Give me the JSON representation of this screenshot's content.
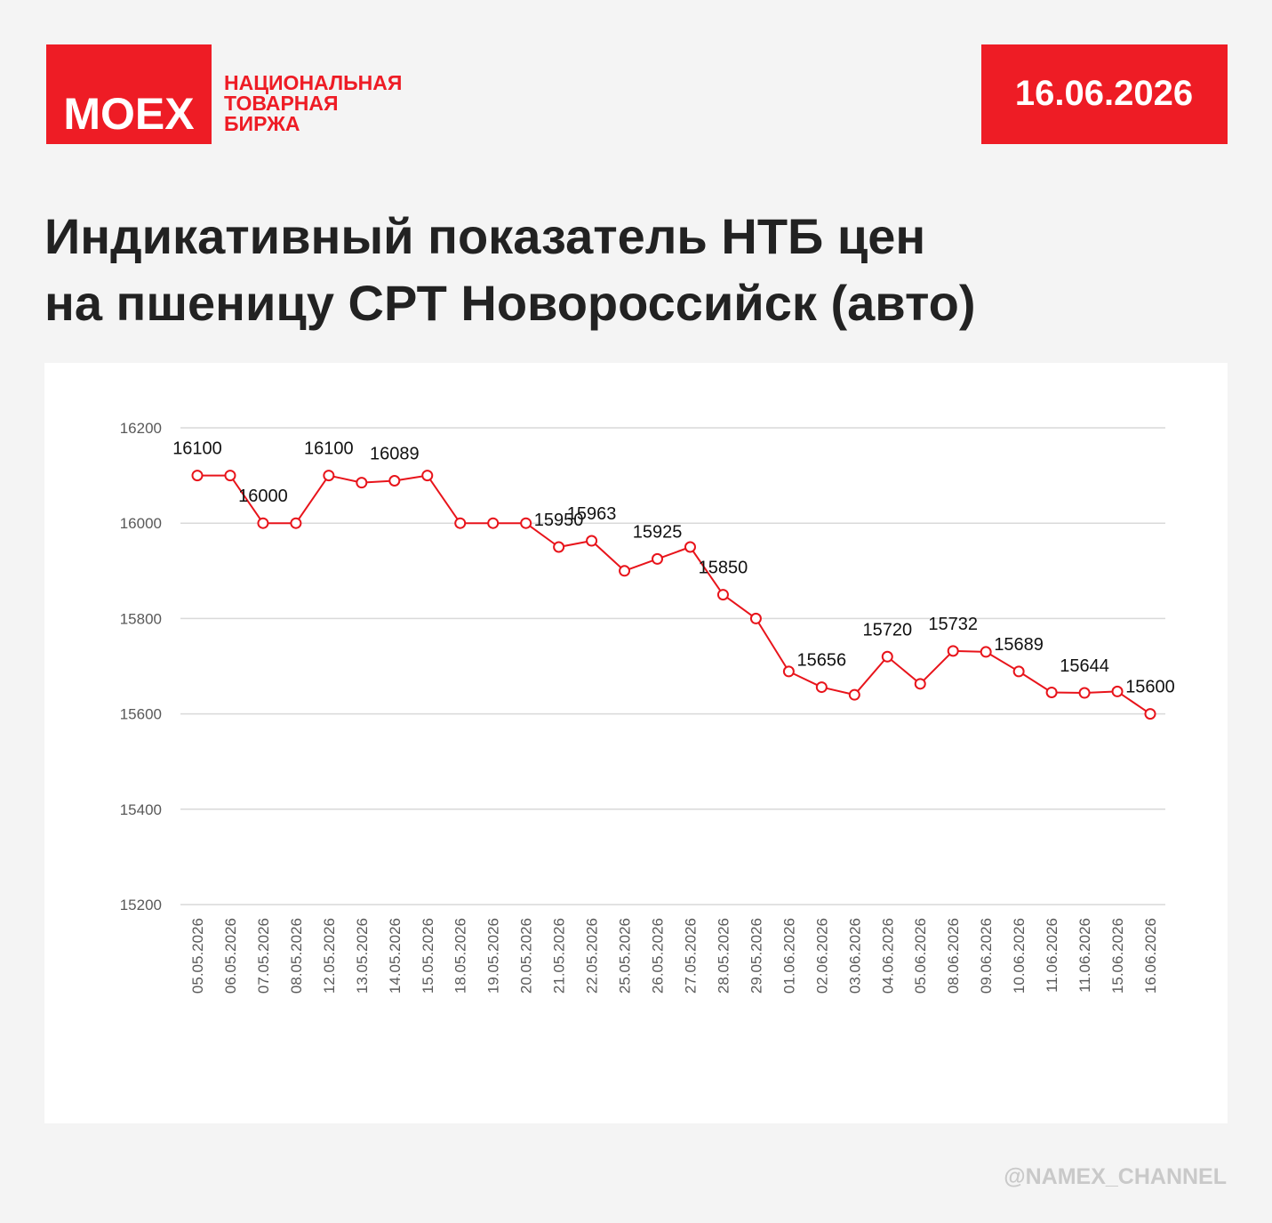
{
  "header": {
    "logo": "MOEX",
    "exchange_name": [
      "НАЦИОНАЛЬНАЯ",
      "ТОВАРНАЯ",
      "БИРЖА"
    ],
    "date": "16.06.2026"
  },
  "chart_data": {
    "type": "line",
    "title": [
      "Индикативный показатель НТБ цен",
      "на пшеницу СРТ Новороссийск (авто)"
    ],
    "categories": [
      "05.05.2026",
      "06.05.2026",
      "07.05.2026",
      "08.05.2026",
      "12.05.2026",
      "13.05.2026",
      "14.05.2026",
      "15.05.2026",
      "18.05.2026",
      "19.05.2026",
      "20.05.2026",
      "21.05.2026",
      "22.05.2026",
      "25.05.2026",
      "26.05.2026",
      "27.05.2026",
      "28.05.2026",
      "29.05.2026",
      "01.06.2026",
      "02.06.2026",
      "03.06.2026",
      "04.06.2026",
      "05.06.2026",
      "08.06.2026",
      "09.06.2026",
      "10.06.2026",
      "11.06.2026",
      "11.06.2026",
      "15.06.2026",
      "16.06.2026"
    ],
    "values": [
      16100,
      16100,
      16000,
      16000,
      16100,
      16085,
      16089,
      16100,
      16000,
      16000,
      16000,
      15950,
      15963,
      15900,
      15925,
      15950,
      15850,
      15800,
      15689,
      15656,
      15640,
      15720,
      15663,
      15732,
      15730,
      15689,
      15645,
      15644,
      15647,
      15600
    ],
    "labeled_points": [
      0,
      2,
      4,
      6,
      11,
      12,
      14,
      16,
      19,
      21,
      23,
      25,
      27,
      29
    ],
    "color": "#e8141b",
    "ylim": [
      15200,
      16200
    ],
    "yticks": [
      15200,
      15400,
      15600,
      15800,
      16000,
      16200
    ],
    "grid": true
  },
  "watermark": "@NAMEX_CHANNEL"
}
